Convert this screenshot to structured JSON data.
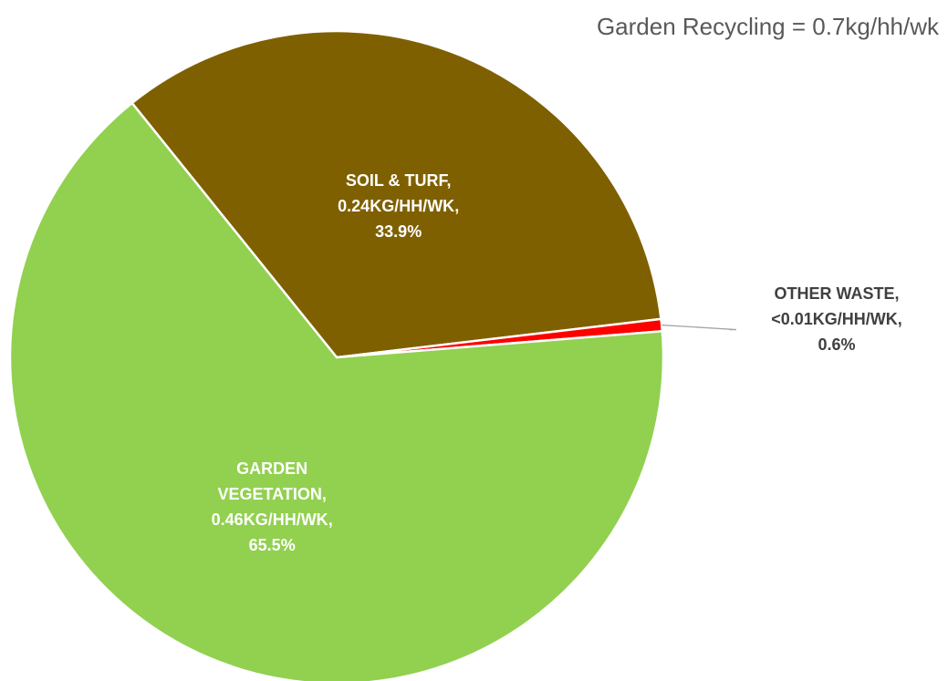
{
  "chart_data": {
    "type": "pie",
    "title": "Garden Recycling = 0.7kg/hh/wk",
    "categories": [
      "SOIL & TURF",
      "OTHER WASTE",
      "GARDEN VEGETATION"
    ],
    "amount_labels": [
      "0.24KG/HH/WK",
      "<0.01KG/HH/WK",
      "0.46KG/HH/WK"
    ],
    "values": [
      33.9,
      0.6,
      65.5
    ],
    "value_labels": [
      "33.9%",
      "0.6%",
      "65.5%"
    ],
    "label_separator": ",",
    "colors": [
      "#7f6000",
      "#ff0000",
      "#92d050"
    ]
  }
}
